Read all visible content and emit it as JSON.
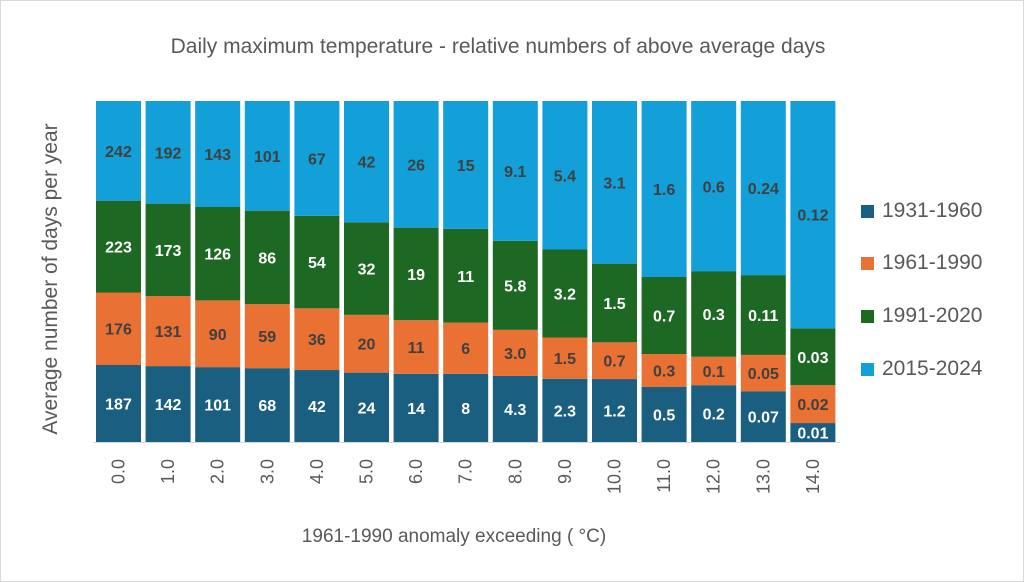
{
  "chart_data": {
    "type": "bar",
    "stacked": "percent",
    "title": "Daily maximum temperature - relative numbers of above average days",
    "xlabel": "1961-1990 anomaly exceeding ( °C)",
    "ylabel": "Average number of days per year",
    "categories": [
      "0.0",
      "1.0",
      "2.0",
      "3.0",
      "4.0",
      "5.0",
      "6.0",
      "7.0",
      "8.0",
      "9.0",
      "10.0",
      "11.0",
      "12.0",
      "13.0",
      "14.0"
    ],
    "series": [
      {
        "name": "1931-1960",
        "color": "#1a5e80",
        "label_color": "#ffffff",
        "values": [
          187,
          142,
          101,
          68,
          42,
          24,
          14,
          8,
          4.3,
          2.3,
          1.2,
          0.5,
          0.2,
          0.07,
          0.01
        ],
        "labels": [
          "187",
          "142",
          "101",
          "68",
          "42",
          "24",
          "14",
          "8",
          "4.3",
          "2.3",
          "1.2",
          "0.5",
          "0.2",
          "0.07",
          "0.01"
        ]
      },
      {
        "name": "1961-1990",
        "color": "#e87133",
        "label_color": "#404040",
        "values": [
          176,
          131,
          90,
          59,
          36,
          20,
          11,
          6,
          3.0,
          1.5,
          0.7,
          0.3,
          0.1,
          0.05,
          0.02
        ],
        "labels": [
          "176",
          "131",
          "90",
          "59",
          "36",
          "20",
          "11",
          "6",
          "3.0",
          "1.5",
          "0.7",
          "0.3",
          "0.1",
          "0.05",
          "0.02"
        ]
      },
      {
        "name": "1991-2020",
        "color": "#1d6823",
        "label_color": "#ffffff",
        "values": [
          223,
          173,
          126,
          86,
          54,
          32,
          19,
          11,
          5.8,
          3.2,
          1.5,
          0.7,
          0.3,
          0.11,
          0.03
        ],
        "labels": [
          "223",
          "173",
          "126",
          "86",
          "54",
          "32",
          "19",
          "11",
          "5.8",
          "3.2",
          "1.5",
          "0.7",
          "0.3",
          "0.11",
          "0.03"
        ]
      },
      {
        "name": "2015-2024",
        "color": "#139fd7",
        "label_color": "#404040",
        "values": [
          242,
          192,
          143,
          101,
          67,
          42,
          26,
          15,
          9.1,
          5.4,
          3.1,
          1.6,
          0.6,
          0.24,
          0.12
        ],
        "labels": [
          "242",
          "192",
          "143",
          "101",
          "67",
          "42",
          "26",
          "15",
          "9.1",
          "5.4",
          "3.1",
          "1.6",
          "0.6",
          "0.24",
          "0.12"
        ]
      }
    ],
    "legend_position": "right",
    "grid": false
  }
}
